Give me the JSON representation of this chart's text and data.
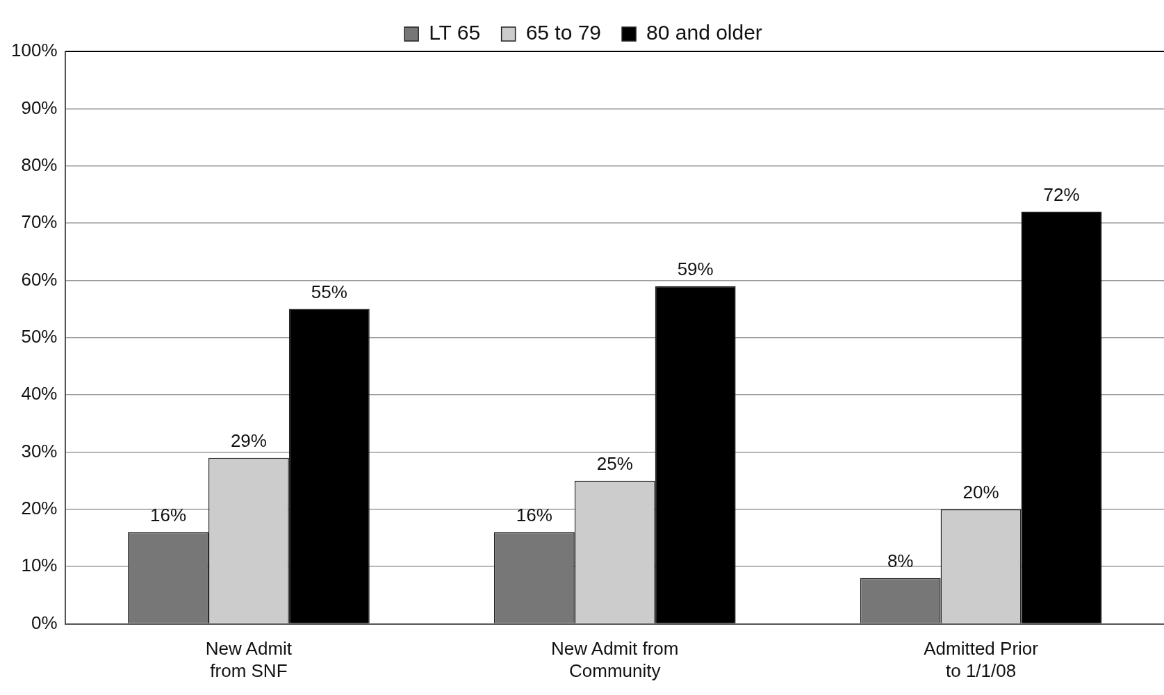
{
  "chart_data": {
    "type": "bar",
    "categories": [
      "New Admit from SNF",
      "New Admit from Community",
      "Admitted Prior to 1/1/08"
    ],
    "series": [
      {
        "name": "LT 65",
        "color": "#777777",
        "values": [
          16,
          16,
          8
        ],
        "value_labels": [
          "16%",
          "16%",
          "8%"
        ]
      },
      {
        "name": "65 to 79",
        "color": "#cccccc",
        "values": [
          29,
          25,
          20
        ],
        "value_labels": [
          "29%",
          "25%",
          "20%"
        ]
      },
      {
        "name": "80 and older",
        "color": "#000000",
        "values": [
          55,
          59,
          72
        ],
        "value_labels": [
          "55%",
          "59%",
          "72%"
        ]
      }
    ],
    "ylim": [
      0,
      100
    ],
    "yticks": [
      {
        "value": 0,
        "label": "0%"
      },
      {
        "value": 10,
        "label": "10%"
      },
      {
        "value": 20,
        "label": "20%"
      },
      {
        "value": 30,
        "label": "30%"
      },
      {
        "value": 40,
        "label": "40%"
      },
      {
        "value": 50,
        "label": "50%"
      },
      {
        "value": 60,
        "label": "60%"
      },
      {
        "value": 70,
        "label": "70%"
      },
      {
        "value": 80,
        "label": "80%"
      },
      {
        "value": 90,
        "label": "90%"
      },
      {
        "value": 100,
        "label": "100%"
      }
    ],
    "grid": "y",
    "legend": "top"
  }
}
